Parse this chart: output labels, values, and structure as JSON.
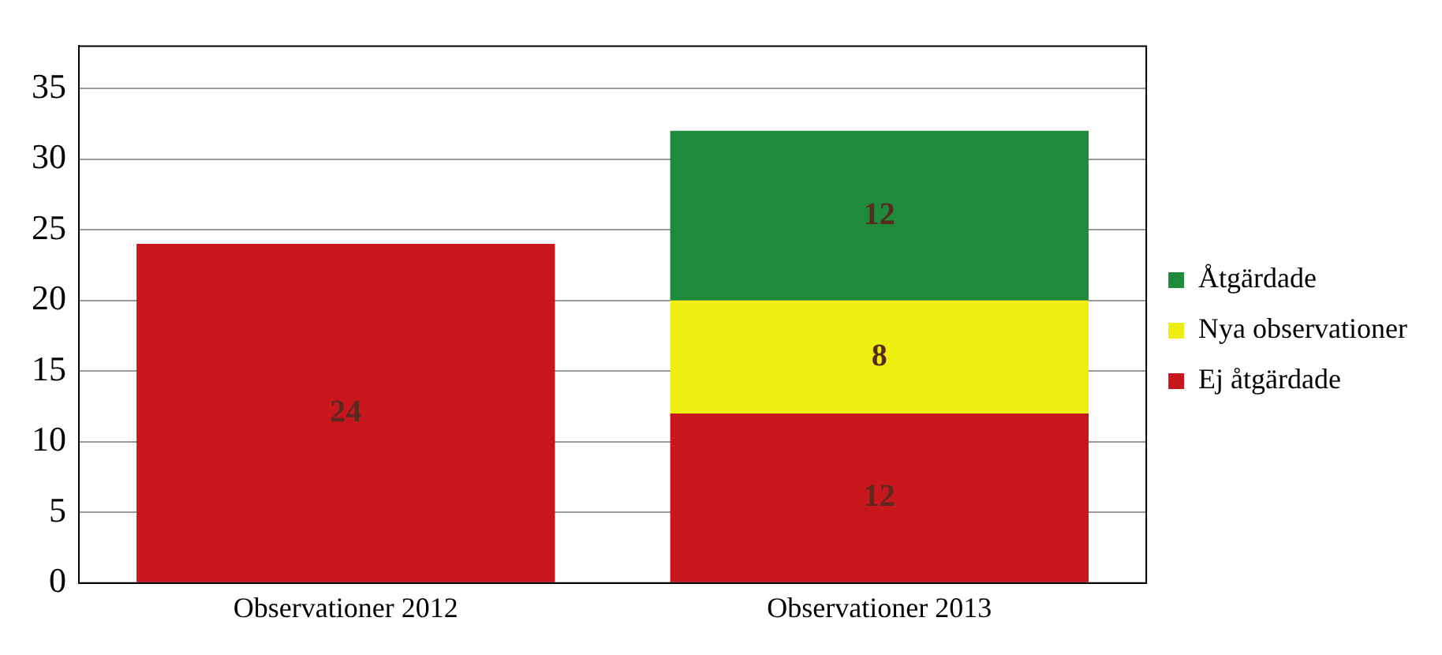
{
  "chart_data": {
    "type": "bar",
    "stacked": true,
    "categories": [
      "Observationer 2012",
      "Observationer 2013"
    ],
    "series": [
      {
        "name": "Ej åtgärdade",
        "color": "#c8161d",
        "values": [
          24,
          12
        ]
      },
      {
        "name": "Nya observationer",
        "color": "#eeee10",
        "values": [
          null,
          8
        ]
      },
      {
        "name": "Åtgärdade",
        "color": "#1f8a3a",
        "values": [
          null,
          12
        ]
      }
    ],
    "ylim": [
      0,
      38
    ],
    "yticks": [
      0,
      5,
      10,
      15,
      20,
      25,
      30,
      35
    ],
    "grid": "y",
    "legend": "right",
    "data_labels": true
  }
}
